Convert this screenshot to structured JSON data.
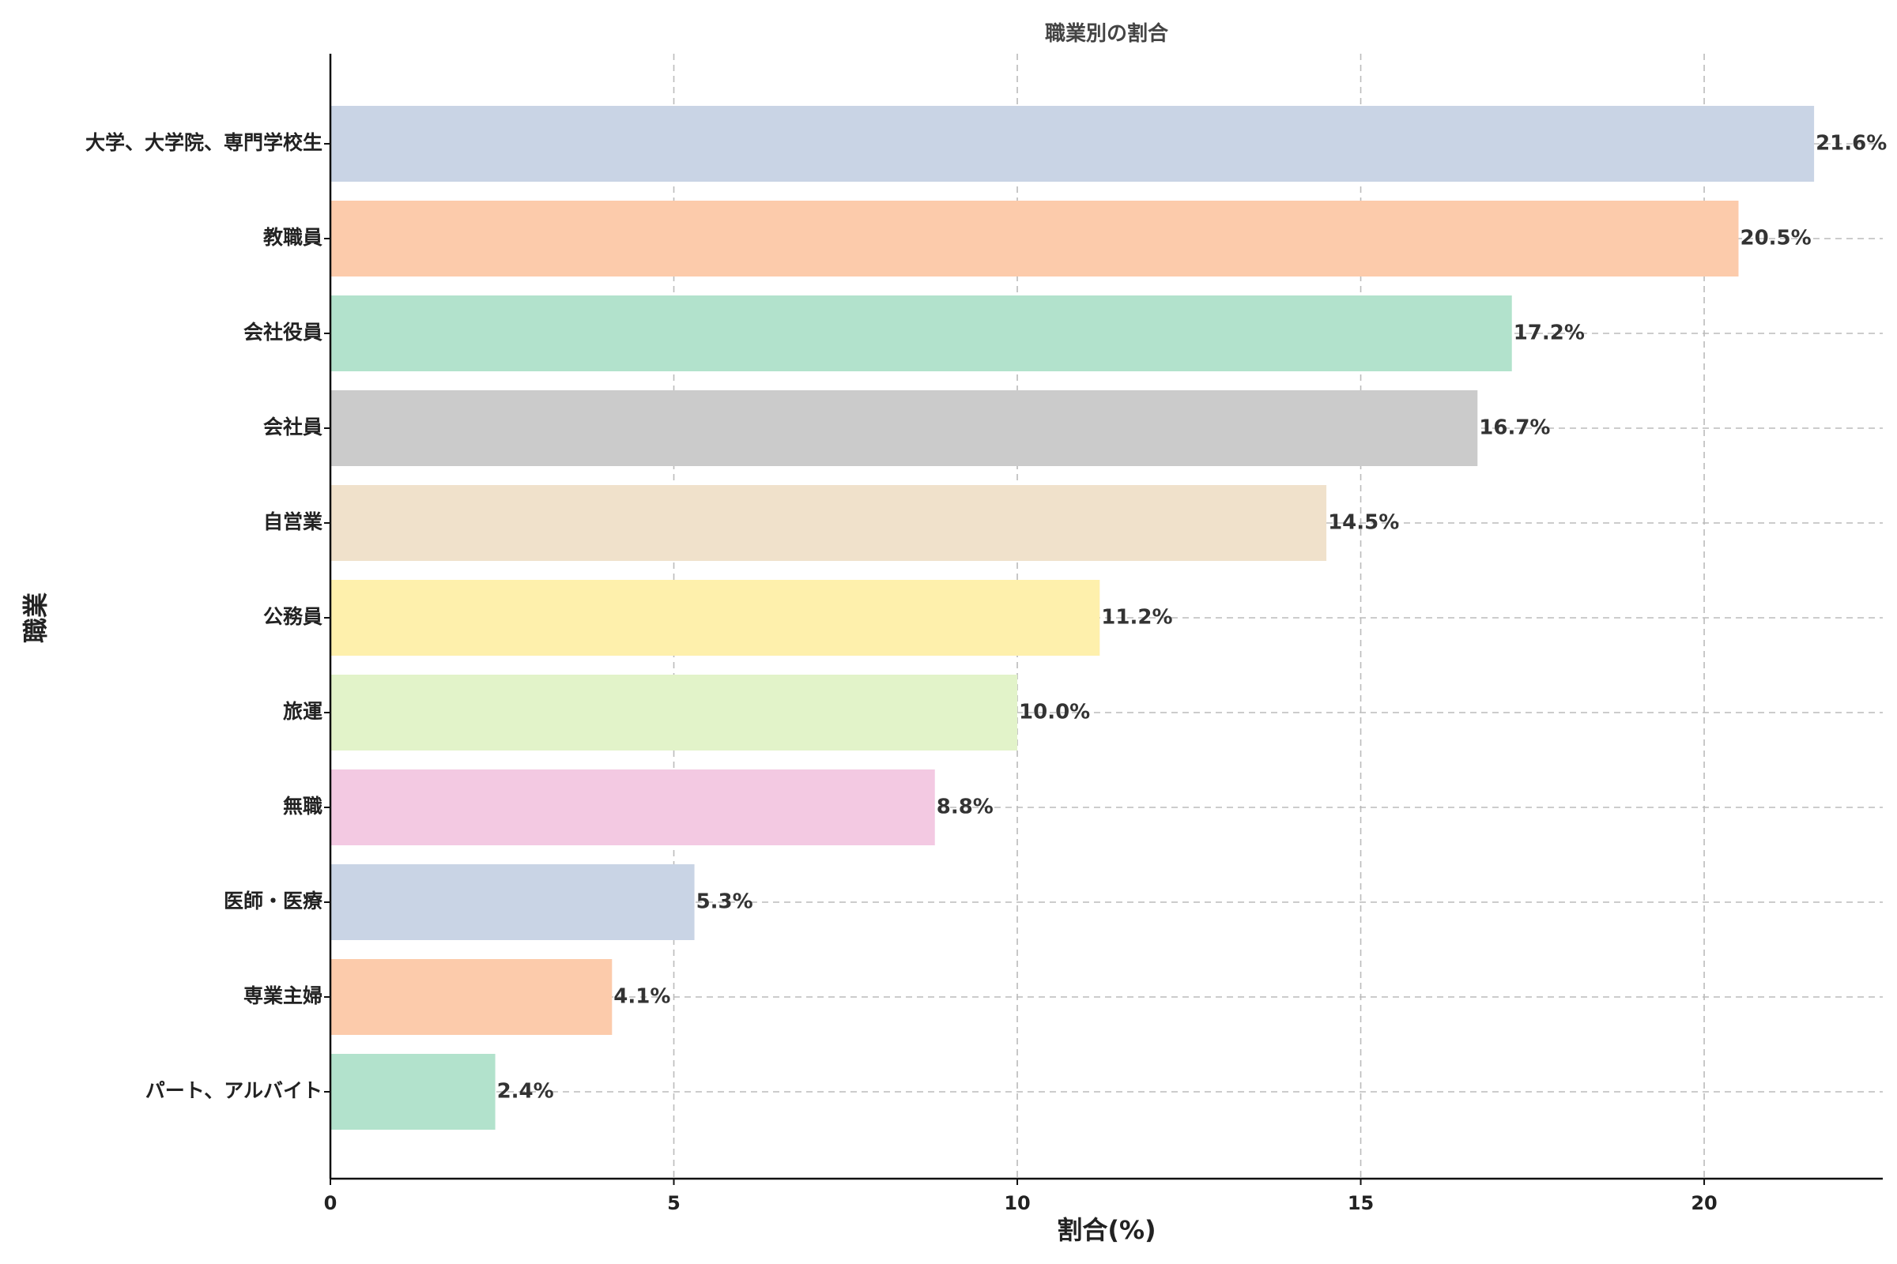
{
  "chart_data": {
    "type": "bar",
    "orientation": "horizontal",
    "title": "職業別の割合",
    "xlabel": "割合(%)",
    "ylabel": "職業",
    "xlim": [
      0,
      22.6
    ],
    "xticks": [
      0,
      5,
      10,
      15,
      20
    ],
    "grid": true,
    "categories": [
      "大学、大学院、専門学校生",
      "教職員",
      "会社役員",
      "会社員",
      "自営業",
      "公務員",
      "旅運",
      "無職",
      "医師・医療",
      "専業主婦",
      "パート、アルバイト"
    ],
    "values": [
      21.6,
      20.5,
      17.2,
      16.7,
      14.5,
      11.2,
      10.0,
      8.8,
      5.3,
      4.1,
      2.4
    ],
    "value_labels": [
      "21.6%",
      "20.5%",
      "17.2%",
      "16.7%",
      "14.5%",
      "11.2%",
      "10.0%",
      "8.8%",
      "5.3%",
      "4.1%",
      "2.4%"
    ],
    "colors": [
      "#c9d4e5",
      "#fccbab",
      "#b2e2cc",
      "#cbcbcb",
      "#f0e1cb",
      "#fef0ac",
      "#e2f3c9",
      "#f3c9e2",
      "#c9d4e5",
      "#fccbab",
      "#b2e2cc"
    ]
  }
}
